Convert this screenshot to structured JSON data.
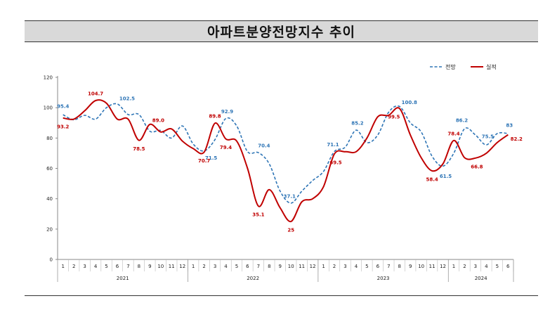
{
  "chart_data": {
    "type": "line",
    "title": "아파트분양전망지수 추이",
    "ylim": [
      0,
      120
    ],
    "yticks": [
      0,
      20,
      40,
      60,
      80,
      100,
      120
    ],
    "years": [
      {
        "label": "2021",
        "months": [
          "1",
          "2",
          "3",
          "4",
          "5",
          "6",
          "7",
          "8",
          "9",
          "10",
          "11",
          "12"
        ]
      },
      {
        "label": "2022",
        "months": [
          "1",
          "2",
          "3",
          "4",
          "5",
          "6",
          "7",
          "8",
          "9",
          "10",
          "11",
          "12"
        ]
      },
      {
        "label": "2023",
        "months": [
          "1",
          "2",
          "3",
          "4",
          "5",
          "6",
          "7",
          "8",
          "9",
          "10",
          "11",
          "12"
        ]
      },
      {
        "label": "2024",
        "months": [
          "1",
          "2",
          "3",
          "4",
          "5",
          "6"
        ]
      }
    ],
    "legend_position": "top-right",
    "series": [
      {
        "name": "전망",
        "color": "#2e75b6",
        "style": "dashed",
        "values": [
          95.4,
          92,
          95,
          92.5,
          100,
          102.5,
          95.5,
          95.5,
          84.5,
          85,
          80,
          88,
          76,
          71.5,
          79,
          92.9,
          88,
          71,
          70.4,
          63,
          45,
          37.1,
          45,
          52,
          58,
          71.1,
          74,
          85.2,
          77,
          82,
          97,
          100.8,
          90,
          84,
          68,
          61.5,
          70,
          86.2,
          82,
          75.5,
          83,
          83
        ],
        "labels": [
          {
            "index": 0,
            "text": "95.4"
          },
          {
            "index": 5,
            "text": "102.5"
          },
          {
            "index": 13,
            "text": "71.5"
          },
          {
            "index": 15,
            "text": "92.9"
          },
          {
            "index": 18,
            "text": "70.4"
          },
          {
            "index": 21,
            "text": "37.1"
          },
          {
            "index": 25,
            "text": "71.1"
          },
          {
            "index": 27,
            "text": "85.2"
          },
          {
            "index": 31,
            "text": "100.8"
          },
          {
            "index": 35,
            "text": "61.5"
          },
          {
            "index": 37,
            "text": "86.2"
          },
          {
            "index": 39,
            "text": "75.5"
          },
          {
            "index": 41,
            "text": "83"
          }
        ]
      },
      {
        "name": "실적",
        "color": "#c00000",
        "style": "solid",
        "values": [
          93.2,
          92.5,
          98,
          104.7,
          103,
          92.5,
          92.5,
          78.5,
          89,
          84,
          86,
          78,
          73,
          70.7,
          89.8,
          79.4,
          78,
          60,
          35.1,
          46,
          34,
          25,
          38,
          40,
          48,
          69.5,
          71,
          71,
          80,
          94,
          95,
          99.5,
          82,
          67,
          58.4,
          63,
          78.4,
          67,
          66.8,
          70,
          77,
          82.2
        ],
        "labels": [
          {
            "index": 0,
            "text": "93.2"
          },
          {
            "index": 3,
            "text": "104.7"
          },
          {
            "index": 7,
            "text": "78.5"
          },
          {
            "index": 8,
            "text": "89.0"
          },
          {
            "index": 13,
            "text": "70.7"
          },
          {
            "index": 14,
            "text": "89.8"
          },
          {
            "index": 15,
            "text": "79.4"
          },
          {
            "index": 18,
            "text": "35.1"
          },
          {
            "index": 21,
            "text": "25"
          },
          {
            "index": 25,
            "text": "69.5"
          },
          {
            "index": 31,
            "text": "99.5"
          },
          {
            "index": 34,
            "text": "58.4"
          },
          {
            "index": 36,
            "text": "78.4"
          },
          {
            "index": 38,
            "text": "66.8"
          },
          {
            "index": 41,
            "text": "82.2"
          }
        ]
      }
    ]
  }
}
